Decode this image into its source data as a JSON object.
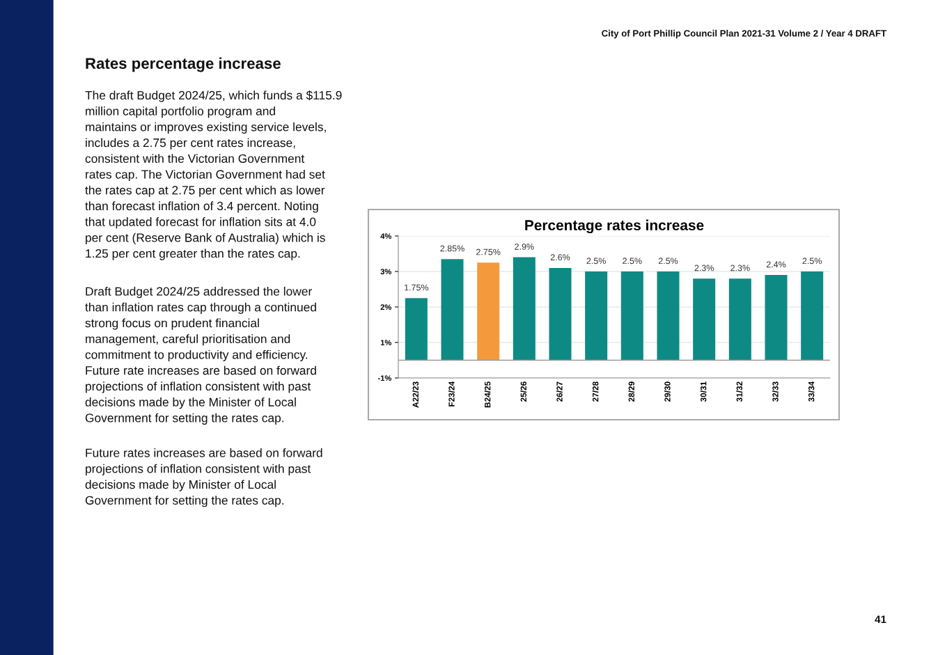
{
  "chart_data": {
    "type": "bar",
    "title": "Percentage rates increase",
    "categories": [
      "A22/23",
      "F23/24",
      "B24/25",
      "25/26",
      "26/27",
      "27/28",
      "28/29",
      "29/30",
      "30/31",
      "31/32",
      "32/33",
      "33/34"
    ],
    "values": [
      1.75,
      2.85,
      2.75,
      2.9,
      2.6,
      2.5,
      2.5,
      2.5,
      2.3,
      2.3,
      2.4,
      2.5
    ],
    "colors": [
      "#0e8a84",
      "#0e8a84",
      "#f59a3c",
      "#0e8a84",
      "#0e8a84",
      "#0e8a84",
      "#0e8a84",
      "#0e8a84",
      "#0e8a84",
      "#0e8a84",
      "#0e8a84",
      "#0e8a84"
    ],
    "value_labels": [
      "1.75%",
      "2.85%",
      "2.75%",
      "2.9%",
      "2.6%",
      "2.5%",
      "2.5%",
      "2.5%",
      "2.3%",
      "2.3%",
      "2.4%",
      "2.5%"
    ],
    "ylim": [
      -0.5,
      3.5
    ],
    "yticks": [
      {
        "value": -0.5,
        "label": "-1%"
      },
      {
        "value": 0.5,
        "label": "1%"
      },
      {
        "value": 1.5,
        "label": "2%"
      },
      {
        "value": 2.5,
        "label": "3%"
      },
      {
        "value": 3.5,
        "label": "4%"
      }
    ],
    "ref_lines": [
      {
        "axis": "y",
        "value": 0,
        "label": null,
        "color": "#9a9a9a"
      }
    ],
    "grid": "y",
    "annotations": [
      "City of Port Phillip Council Plan 2021-31 Volume 2 / Year 4 DRAFT",
      "Rates percentage increase",
      "The draft Budget 2024/25, which funds a $115.9\nmillion capital portfolio program and\nmaintains or improves existing service levels,\nincludes a 2.75 per cent rates increase,\nconsistent with the Victorian Government\nrates cap. The Victorian Government had set\nthe rates cap at 2.75 per cent which as lower\nthan forecast inflation of 3.4 percent. Noting\nthat updated forecast for inflation sits at 4.0\nper cent (Reserve Bank of Australia) which is\n1.25 per cent greater than the rates cap.",
      "Draft Budget 2024/25 addressed the lower\nthan inflation rates cap through a continued\nstrong focus on prudent financial\nmanagement, careful prioritisation and\ncommitment to productivity and efficiency.\nFuture rate increases are based on forward\nprojections of inflation consistent with past\ndecisions made by the Minister of Local\nGovernment for setting the rates cap.",
      "Future rates increases are based on forward\nprojections of inflation consistent with past\ndecisions made by Minister of Local\nGovernment for setting the rates cap.",
      "41"
    ]
  }
}
